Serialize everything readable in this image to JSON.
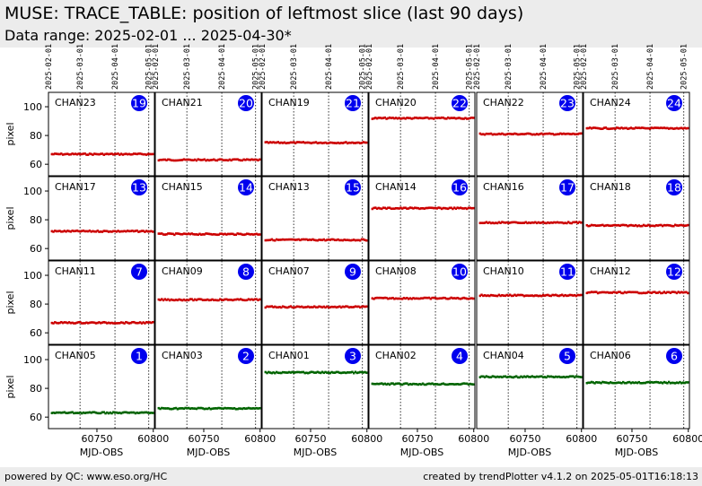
{
  "page": {
    "title": "MUSE: TRACE_TABLE: position of leftmost slice (last 90 days)",
    "subtitle": "Data range: 2025-02-01 ... 2025-04-30*",
    "footer_left": "powered by QC: www.eso.org/HC",
    "footer_right": "created by trendPlotter v4.1.2 on 2025-05-01T16:18:13"
  },
  "chart_data": {
    "type": "scatter",
    "layout": "small-multiples 6 columns x 4 rows",
    "xlabel": "MJD-OBS",
    "ylabel": "pixel",
    "xlim": [
      60707,
      60801
    ],
    "ylim": [
      52,
      110
    ],
    "x_ticks": [
      60750,
      60800
    ],
    "y_ticks": [
      60,
      80,
      100
    ],
    "date_ticks": [
      "2025-02-01",
      "2025-03-01",
      "2025-04-01",
      "2025-05-01"
    ],
    "date_ticks_mjd": [
      60707,
      60735,
      60766,
      60796
    ],
    "grid": "vertical dotted lines at month boundaries",
    "marker_color_default": "#cc0000",
    "marker_color_reference": "#006400",
    "badge_color": "#0000ee",
    "panels": [
      {
        "channel": "CHAN23",
        "number": "19",
        "level": 67,
        "color": "red"
      },
      {
        "channel": "CHAN21",
        "number": "20",
        "level": 63,
        "color": "red"
      },
      {
        "channel": "CHAN19",
        "number": "21",
        "level": 75,
        "color": "red"
      },
      {
        "channel": "CHAN20",
        "number": "22",
        "level": 92,
        "color": "red"
      },
      {
        "channel": "CHAN22",
        "number": "23",
        "level": 81,
        "color": "red"
      },
      {
        "channel": "CHAN24",
        "number": "24",
        "level": 85,
        "color": "red"
      },
      {
        "channel": "CHAN17",
        "number": "13",
        "level": 72,
        "color": "red"
      },
      {
        "channel": "CHAN15",
        "number": "14",
        "level": 70,
        "color": "red"
      },
      {
        "channel": "CHAN13",
        "number": "15",
        "level": 66,
        "color": "red"
      },
      {
        "channel": "CHAN14",
        "number": "16",
        "level": 88,
        "color": "red"
      },
      {
        "channel": "CHAN16",
        "number": "17",
        "level": 78,
        "color": "red"
      },
      {
        "channel": "CHAN18",
        "number": "18",
        "level": 76,
        "color": "red"
      },
      {
        "channel": "CHAN11",
        "number": "7",
        "level": 67,
        "color": "red"
      },
      {
        "channel": "CHAN09",
        "number": "8",
        "level": 83,
        "color": "red"
      },
      {
        "channel": "CHAN07",
        "number": "9",
        "level": 78,
        "color": "red"
      },
      {
        "channel": "CHAN08",
        "number": "10",
        "level": 84,
        "color": "red"
      },
      {
        "channel": "CHAN10",
        "number": "11",
        "level": 86,
        "color": "red"
      },
      {
        "channel": "CHAN12",
        "number": "12",
        "level": 88,
        "color": "red"
      },
      {
        "channel": "CHAN05",
        "number": "1",
        "level": 63,
        "color": "green"
      },
      {
        "channel": "CHAN03",
        "number": "2",
        "level": 66,
        "color": "green"
      },
      {
        "channel": "CHAN01",
        "number": "3",
        "level": 91,
        "color": "green"
      },
      {
        "channel": "CHAN02",
        "number": "4",
        "level": 83,
        "color": "green"
      },
      {
        "channel": "CHAN04",
        "number": "5",
        "level": 88,
        "color": "green"
      },
      {
        "channel": "CHAN06",
        "number": "6",
        "level": 84,
        "color": "green"
      }
    ]
  }
}
